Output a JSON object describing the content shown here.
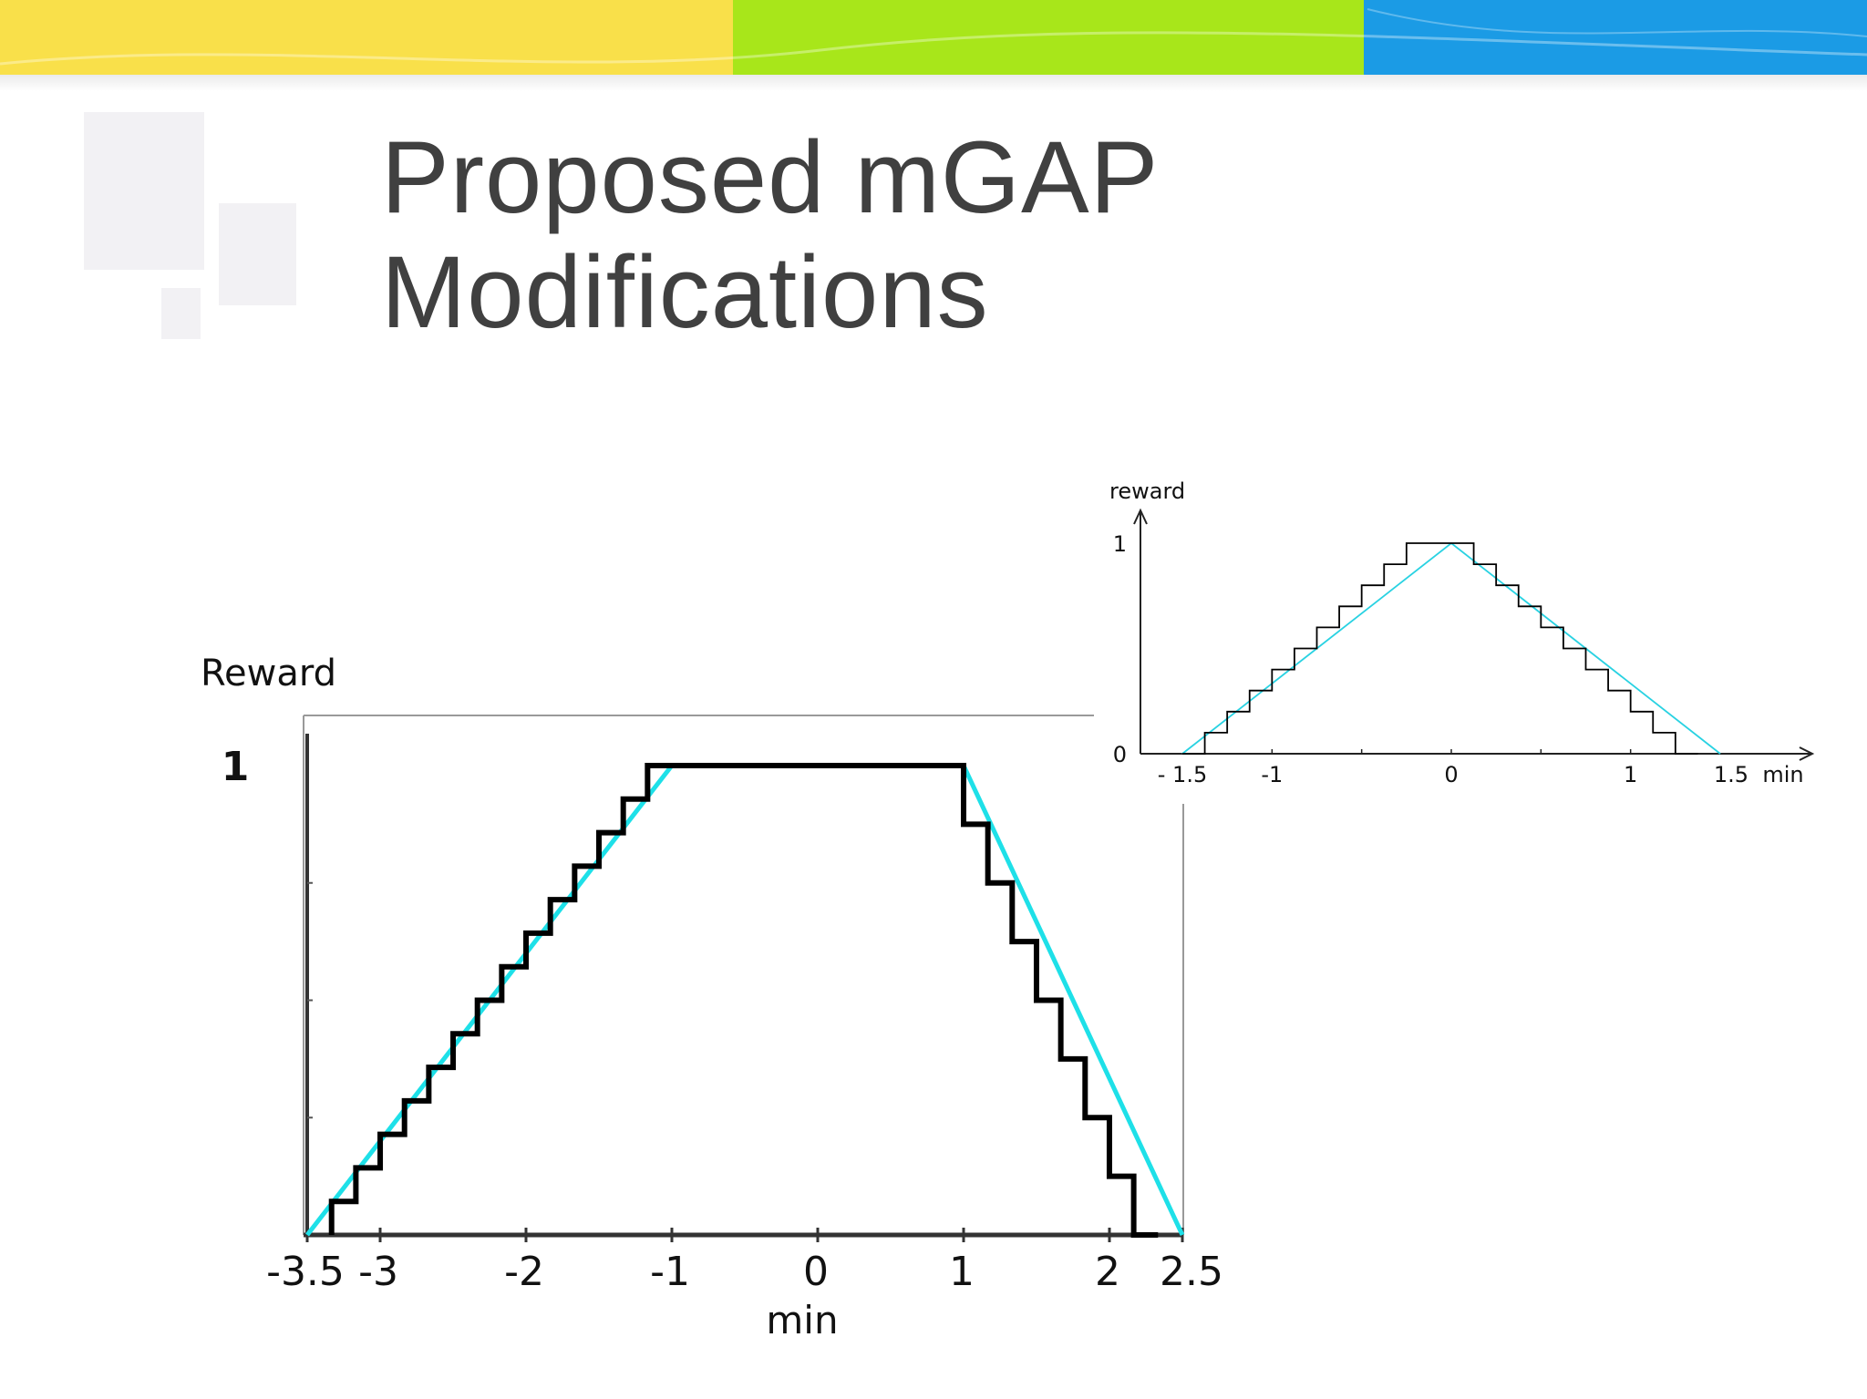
{
  "slide": {
    "title_line1": "Proposed mGAP",
    "title_line2": "Modifications",
    "banner_colors": [
      "#f9e04a",
      "#a8e61a",
      "#1b9be5"
    ]
  },
  "chart_data": [
    {
      "type": "line",
      "name_role": "large-reward-chart",
      "xlabel": "min",
      "ylabel": "Reward",
      "xlim": [
        -3.5,
        2.5
      ],
      "ylim": [
        0,
        1
      ],
      "x_tick_labels": [
        "-3.5",
        "-3",
        "-2",
        "-1",
        "0",
        "1",
        "2",
        "2.5"
      ],
      "x_ticks": [
        -3.5,
        -3,
        -2,
        -1,
        0,
        1,
        2,
        2.5
      ],
      "y_tick_labels": [
        "1"
      ],
      "y_ticks": [
        1
      ],
      "series": [
        {
          "style": "linear",
          "color": "#1ee0e8",
          "x": [
            -3.5,
            -1,
            1,
            2.5
          ],
          "y": [
            0,
            1,
            1,
            0
          ]
        },
        {
          "style": "step",
          "color": "#000000",
          "left_ramp": {
            "x_start": -3.333,
            "x_end": -1,
            "steps": 14
          },
          "plateau": [
            -1,
            1
          ],
          "right_ramp": {
            "x_start": 1,
            "x_end": 2.333,
            "steps": 8
          }
        }
      ]
    },
    {
      "type": "line",
      "name_role": "small-reward-chart",
      "xlabel": "min",
      "ylabel": "reward",
      "xlim": [
        -1.5,
        1.5
      ],
      "ylim": [
        0,
        1
      ],
      "x_tick_labels": [
        "- 1.5",
        "-1",
        "0",
        "1",
        "1.5"
      ],
      "x_ticks": [
        -1.5,
        -1,
        0,
        1,
        1.5
      ],
      "y_tick_labels": [
        "1",
        "0"
      ],
      "y_ticks": [
        1,
        0
      ],
      "series": [
        {
          "style": "linear",
          "color": "#29d2e2",
          "x": [
            -1.5,
            0,
            1.5
          ],
          "y": [
            0,
            1,
            0
          ]
        },
        {
          "style": "step",
          "color": "#000000",
          "step_width": 0.125,
          "step_height": 0.1,
          "x_range": [
            -1.25,
            1.25
          ]
        }
      ]
    }
  ]
}
